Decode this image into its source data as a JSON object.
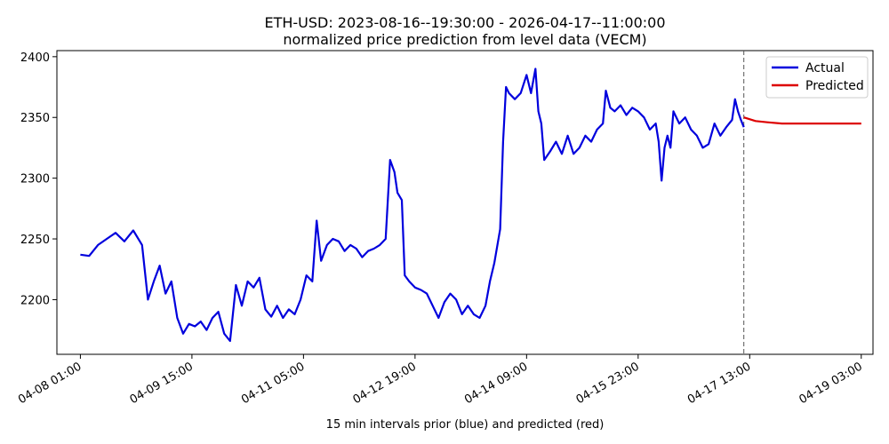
{
  "chart_data": {
    "type": "line",
    "title": "ETH-USD: 2023-08-16--19:30:00 - 2026-04-17--11:00:00",
    "subtitle": "normalized price prediction from level data (VECM)",
    "xlabel": "15 min intervals prior (blue) and predicted (red)",
    "ylabel": "",
    "x_tick_labels": [
      "04-08 01:00",
      "04-09 15:00",
      "04-11 05:00",
      "04-12 19:00",
      "04-14 09:00",
      "04-15 23:00",
      "04-17 13:00",
      "04-19 03:00"
    ],
    "x_tick_dates": [
      "2026-04-08T01:00",
      "2026-04-09T15:00",
      "2026-04-11T05:00",
      "2026-04-12T19:00",
      "2026-04-14T09:00",
      "2026-04-15T23:00",
      "2026-04-17T13:00",
      "2026-04-19T03:00"
    ],
    "y_ticks": [
      2200,
      2250,
      2300,
      2350,
      2400
    ],
    "ylim": [
      2155,
      2405
    ],
    "xlim": [
      "2026-04-07T17:00",
      "2026-04-19T07:00"
    ],
    "forecast_start": "2026-04-17T11:00",
    "grid": false,
    "legend_position": "top-right",
    "series": [
      {
        "name": "Actual",
        "color": "#0000dd",
        "points": [
          [
            "2026-04-08T01:00",
            2237
          ],
          [
            "2026-04-08T04:00",
            2236
          ],
          [
            "2026-04-08T07:00",
            2245
          ],
          [
            "2026-04-08T10:00",
            2250
          ],
          [
            "2026-04-08T13:00",
            2255
          ],
          [
            "2026-04-08T16:00",
            2248
          ],
          [
            "2026-04-08T19:00",
            2257
          ],
          [
            "2026-04-08T22:00",
            2245
          ],
          [
            "2026-04-09T00:00",
            2200
          ],
          [
            "2026-04-09T02:00",
            2215
          ],
          [
            "2026-04-09T04:00",
            2228
          ],
          [
            "2026-04-09T06:00",
            2205
          ],
          [
            "2026-04-09T08:00",
            2215
          ],
          [
            "2026-04-09T10:00",
            2185
          ],
          [
            "2026-04-09T12:00",
            2172
          ],
          [
            "2026-04-09T14:00",
            2180
          ],
          [
            "2026-04-09T16:00",
            2178
          ],
          [
            "2026-04-09T18:00",
            2182
          ],
          [
            "2026-04-09T20:00",
            2175
          ],
          [
            "2026-04-09T22:00",
            2185
          ],
          [
            "2026-04-10T00:00",
            2190
          ],
          [
            "2026-04-10T02:00",
            2172
          ],
          [
            "2026-04-10T04:00",
            2166
          ],
          [
            "2026-04-10T06:00",
            2212
          ],
          [
            "2026-04-10T08:00",
            2195
          ],
          [
            "2026-04-10T10:00",
            2215
          ],
          [
            "2026-04-10T12:00",
            2210
          ],
          [
            "2026-04-10T14:00",
            2218
          ],
          [
            "2026-04-10T16:00",
            2192
          ],
          [
            "2026-04-10T18:00",
            2186
          ],
          [
            "2026-04-10T20:00",
            2195
          ],
          [
            "2026-04-10T22:00",
            2185
          ],
          [
            "2026-04-11T00:00",
            2192
          ],
          [
            "2026-04-11T02:00",
            2188
          ],
          [
            "2026-04-11T04:00",
            2200
          ],
          [
            "2026-04-11T06:00",
            2220
          ],
          [
            "2026-04-11T08:00",
            2215
          ],
          [
            "2026-04-11T09:30",
            2265
          ],
          [
            "2026-04-11T11:00",
            2232
          ],
          [
            "2026-04-11T13:00",
            2245
          ],
          [
            "2026-04-11T15:00",
            2250
          ],
          [
            "2026-04-11T17:00",
            2248
          ],
          [
            "2026-04-11T19:00",
            2240
          ],
          [
            "2026-04-11T21:00",
            2245
          ],
          [
            "2026-04-11T23:00",
            2242
          ],
          [
            "2026-04-12T01:00",
            2235
          ],
          [
            "2026-04-12T03:00",
            2240
          ],
          [
            "2026-04-12T05:00",
            2242
          ],
          [
            "2026-04-12T07:00",
            2245
          ],
          [
            "2026-04-12T09:00",
            2250
          ],
          [
            "2026-04-12T10:30",
            2315
          ],
          [
            "2026-04-12T12:00",
            2305
          ],
          [
            "2026-04-12T13:00",
            2288
          ],
          [
            "2026-04-12T14:30",
            2282
          ],
          [
            "2026-04-12T15:30",
            2220
          ],
          [
            "2026-04-12T17:00",
            2215
          ],
          [
            "2026-04-12T19:00",
            2210
          ],
          [
            "2026-04-12T21:00",
            2208
          ],
          [
            "2026-04-12T23:00",
            2205
          ],
          [
            "2026-04-13T01:00",
            2195
          ],
          [
            "2026-04-13T03:00",
            2185
          ],
          [
            "2026-04-13T05:00",
            2198
          ],
          [
            "2026-04-13T07:00",
            2205
          ],
          [
            "2026-04-13T09:00",
            2200
          ],
          [
            "2026-04-13T11:00",
            2188
          ],
          [
            "2026-04-13T13:00",
            2195
          ],
          [
            "2026-04-13T15:00",
            2188
          ],
          [
            "2026-04-13T17:00",
            2185
          ],
          [
            "2026-04-13T19:00",
            2195
          ],
          [
            "2026-04-13T20:30",
            2215
          ],
          [
            "2026-04-13T22:00",
            2230
          ],
          [
            "2026-04-14T00:00",
            2258
          ],
          [
            "2026-04-14T01:00",
            2330
          ],
          [
            "2026-04-14T02:00",
            2375
          ],
          [
            "2026-04-14T03:00",
            2370
          ],
          [
            "2026-04-14T05:00",
            2365
          ],
          [
            "2026-04-14T07:00",
            2370
          ],
          [
            "2026-04-14T09:00",
            2385
          ],
          [
            "2026-04-14T10:30",
            2370
          ],
          [
            "2026-04-14T12:00",
            2390
          ],
          [
            "2026-04-14T13:00",
            2355
          ],
          [
            "2026-04-14T14:00",
            2345
          ],
          [
            "2026-04-14T15:00",
            2315
          ],
          [
            "2026-04-14T17:00",
            2322
          ],
          [
            "2026-04-14T19:00",
            2330
          ],
          [
            "2026-04-14T21:00",
            2320
          ],
          [
            "2026-04-14T23:00",
            2335
          ],
          [
            "2026-04-15T01:00",
            2320
          ],
          [
            "2026-04-15T03:00",
            2325
          ],
          [
            "2026-04-15T05:00",
            2335
          ],
          [
            "2026-04-15T07:00",
            2330
          ],
          [
            "2026-04-15T09:00",
            2340
          ],
          [
            "2026-04-15T11:00",
            2345
          ],
          [
            "2026-04-15T12:00",
            2372
          ],
          [
            "2026-04-15T13:30",
            2358
          ],
          [
            "2026-04-15T15:00",
            2355
          ],
          [
            "2026-04-15T17:00",
            2360
          ],
          [
            "2026-04-15T19:00",
            2352
          ],
          [
            "2026-04-15T21:00",
            2358
          ],
          [
            "2026-04-15T23:00",
            2355
          ],
          [
            "2026-04-16T01:00",
            2350
          ],
          [
            "2026-04-16T03:00",
            2340
          ],
          [
            "2026-04-16T05:00",
            2345
          ],
          [
            "2026-04-16T06:00",
            2330
          ],
          [
            "2026-04-16T07:00",
            2298
          ],
          [
            "2026-04-16T08:00",
            2325
          ],
          [
            "2026-04-16T09:00",
            2335
          ],
          [
            "2026-04-16T10:00",
            2325
          ],
          [
            "2026-04-16T11:00",
            2355
          ],
          [
            "2026-04-16T13:00",
            2345
          ],
          [
            "2026-04-16T15:00",
            2350
          ],
          [
            "2026-04-16T17:00",
            2340
          ],
          [
            "2026-04-16T19:00",
            2335
          ],
          [
            "2026-04-16T21:00",
            2325
          ],
          [
            "2026-04-16T23:00",
            2328
          ],
          [
            "2026-04-17T01:00",
            2345
          ],
          [
            "2026-04-17T03:00",
            2335
          ],
          [
            "2026-04-17T05:00",
            2342
          ],
          [
            "2026-04-17T07:00",
            2348
          ],
          [
            "2026-04-17T08:00",
            2365
          ],
          [
            "2026-04-17T09:00",
            2355
          ],
          [
            "2026-04-17T10:00",
            2348
          ],
          [
            "2026-04-17T11:00",
            2342
          ]
        ]
      },
      {
        "name": "Predicted",
        "color": "#dd0000",
        "points": [
          [
            "2026-04-17T11:00",
            2350
          ],
          [
            "2026-04-17T15:00",
            2347
          ],
          [
            "2026-04-17T19:00",
            2346
          ],
          [
            "2026-04-18T00:00",
            2345
          ],
          [
            "2026-04-18T06:00",
            2345
          ],
          [
            "2026-04-18T12:00",
            2345
          ],
          [
            "2026-04-18T18:00",
            2345
          ],
          [
            "2026-04-19T03:00",
            2345
          ]
        ]
      }
    ]
  }
}
